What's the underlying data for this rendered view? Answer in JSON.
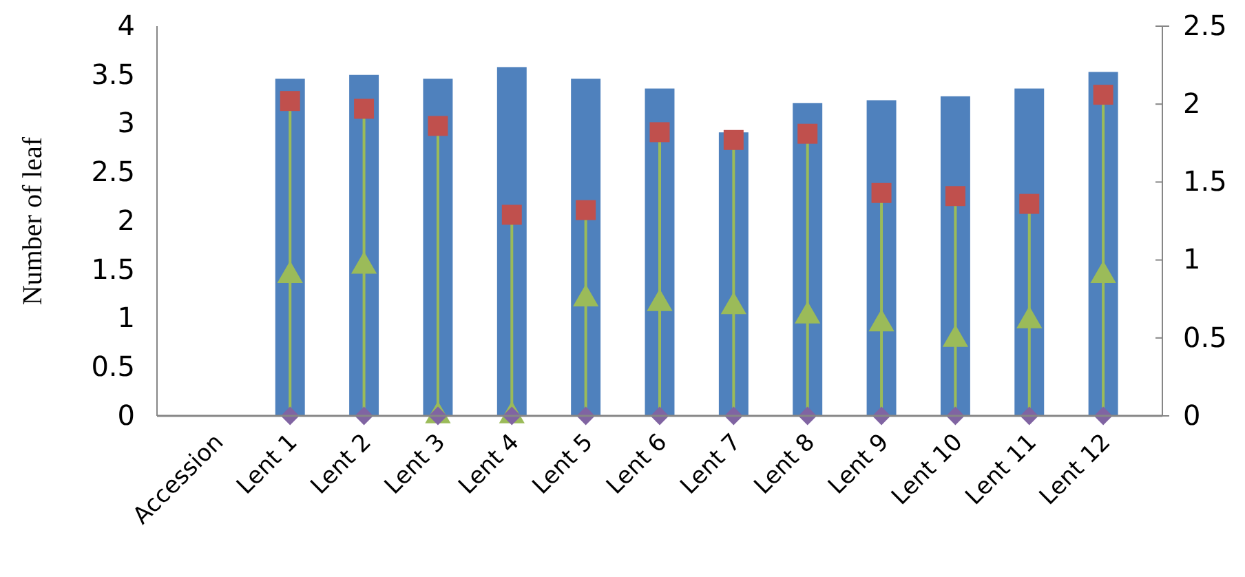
{
  "chart_data": {
    "type": "bar",
    "ylabel": "Number of leaf",
    "categories": [
      "Accession",
      "Lent 1",
      "Lent 2",
      "Lent 3",
      "Lent 4",
      "Lent 5",
      "Lent 6",
      "Lent 7",
      "Lent 8",
      "Lent 9",
      "Lent 10",
      "Lent 11",
      "Lent 12"
    ],
    "series": [
      {
        "color": "#4f81bd",
        "values": [
          null,
          3.46,
          3.5,
          3.46,
          3.58,
          3.46,
          3.36,
          2.91,
          3.21,
          3.24,
          3.28,
          3.36,
          3.53
        ]
      },
      {
        "type": "scatter",
        "axis": "y2",
        "marker": "square",
        "color": "#c0504d",
        "values": [
          null,
          2.02,
          1.97,
          1.86,
          1.29,
          1.32,
          1.82,
          1.77,
          1.81,
          1.43,
          1.41,
          1.36,
          2.06
        ]
      },
      {
        "type": "scatter",
        "axis": "y2",
        "marker": "triangle",
        "color": "#9bbb59",
        "values": [
          null,
          0.9,
          0.96,
          0,
          0,
          0.75,
          0.72,
          0.7,
          0.64,
          0.59,
          0.49,
          0.61,
          0.9
        ]
      },
      {
        "type": "scatter",
        "axis": "y2",
        "marker": "diamond",
        "color": "#8064a2",
        "values": [
          null,
          0,
          0,
          0,
          0,
          0,
          0,
          0,
          0,
          0,
          0,
          0,
          0
        ]
      }
    ],
    "ylim": [
      0,
      4
    ],
    "yticks": [
      0,
      0.5,
      1,
      1.5,
      2,
      2.5,
      3,
      3.5,
      4
    ],
    "y2lim": [
      0,
      2.5
    ],
    "y2ticks": [
      0,
      0.5,
      1,
      1.5,
      2,
      2.5
    ],
    "grid": false
  }
}
